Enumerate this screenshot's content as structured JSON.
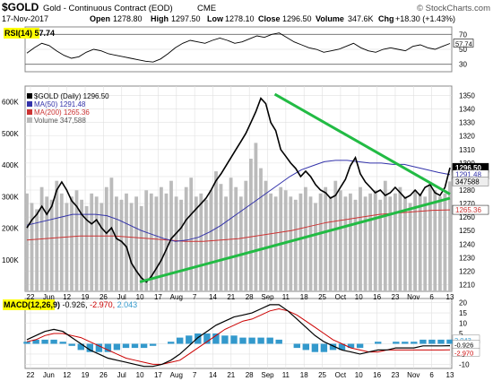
{
  "header": {
    "symbol": "$GOLD",
    "description": "Gold - Continuous Contract (EOD)",
    "exchange": "CME",
    "copyright": "© StockCharts.com",
    "date": "17-Nov-2017",
    "open_label": "Open",
    "open_value": "1278.80",
    "high_label": "High",
    "high_value": "1297.50",
    "low_label": "Low",
    "low_value": "1278.10",
    "close_label": "Close",
    "close_value": "1296.50",
    "volume_label": "Volume",
    "volume_value": "347.6K",
    "chg_label": "Chg",
    "chg_value": "+18.30 (+1.43%)"
  },
  "colors": {
    "price_line": "#000000",
    "price_up_segment": "#cc0000",
    "ma50": "#3333aa",
    "ma200": "#cc3333",
    "trendline": "#22bb44",
    "volume": "#bbbbbb",
    "macd_line": "#000000",
    "macd_signal": "#cc0000",
    "histogram": "#3399cc",
    "highlight": "#ffff00",
    "grid": "#e0e0e0"
  },
  "chart_data": [
    {
      "type": "line",
      "panel": "rsi",
      "label": "RSI(14) 57.74",
      "y_ticks": [
        70,
        50,
        30
      ],
      "ylim": [
        20,
        80
      ],
      "reference_lines": [
        70,
        30
      ],
      "last_value_tag": "57.74",
      "values": [
        45,
        52,
        58,
        55,
        48,
        42,
        38,
        40,
        46,
        50,
        48,
        44,
        42,
        40,
        38,
        36,
        34,
        33,
        37,
        44,
        52,
        58,
        62,
        60,
        58,
        62,
        65,
        62,
        58,
        60,
        64,
        68,
        66,
        70,
        72,
        66,
        60,
        56,
        52,
        50,
        46,
        48,
        50,
        54,
        58,
        52,
        48,
        46,
        50,
        52,
        50,
        48,
        54,
        56,
        52,
        50,
        54,
        57.74
      ]
    },
    {
      "type": "line",
      "panel": "price",
      "legend": [
        {
          "name": "$GOLD (Daily) 1296.50",
          "color": "#000000"
        },
        {
          "name": "MA(50) 1291.48",
          "color": "#3333aa"
        },
        {
          "name": "MA(200) 1265.36",
          "color": "#cc3333"
        },
        {
          "name": "Volume 347,588",
          "color": "#bbbbbb"
        }
      ],
      "y_ticks": [
        1350,
        1340,
        1330,
        1320,
        1310,
        1300,
        1290,
        1280,
        1270,
        1260,
        1250,
        1240,
        1230,
        1220,
        1210
      ],
      "ylim": [
        1205,
        1357
      ],
      "volume_ticks": [
        "600K",
        "500K",
        "400K",
        "300K",
        "200K",
        "100K"
      ],
      "volume_ylim": [
        0,
        650
      ],
      "price_tags": [
        "1296.50",
        "1291.48",
        "1265.36"
      ],
      "volume_tag": "347588",
      "x_ticks": [
        "22",
        "Jun",
        "12",
        "19",
        "26",
        "Jul",
        "10",
        "17",
        "Aug",
        "7",
        "14",
        "21",
        "28",
        "Sep",
        "11",
        "18",
        "25",
        "Oct",
        "10",
        "16",
        "23",
        "Nov",
        "6",
        "13"
      ],
      "series": [
        {
          "name": "$GOLD (Daily) 1296.50",
          "values": [
            1252,
            1258,
            1262,
            1268,
            1262,
            1268,
            1280,
            1286,
            1280,
            1272,
            1268,
            1262,
            1258,
            1255,
            1258,
            1252,
            1248,
            1252,
            1244,
            1242,
            1238,
            1226,
            1220,
            1215,
            1212,
            1216,
            1222,
            1228,
            1236,
            1244,
            1248,
            1252,
            1258,
            1262,
            1266,
            1270,
            1274,
            1280,
            1287,
            1292,
            1298,
            1304,
            1310,
            1316,
            1322,
            1330,
            1338,
            1348,
            1344,
            1330,
            1324,
            1310,
            1305,
            1300,
            1296,
            1290,
            1294,
            1290,
            1284,
            1280,
            1278,
            1274,
            1276,
            1282,
            1288,
            1298,
            1304,
            1292,
            1286,
            1282,
            1278,
            1280,
            1276,
            1278,
            1282,
            1278,
            1274,
            1276,
            1280,
            1276,
            1282,
            1284,
            1278,
            1276,
            1282,
            1296.5
          ]
        },
        {
          "name": "MA(50) 1291.48",
          "values": [
            1254,
            1256,
            1258,
            1260,
            1262,
            1262,
            1262,
            1261,
            1258,
            1254,
            1250,
            1247,
            1244,
            1242,
            1243,
            1245,
            1249,
            1254,
            1260,
            1266,
            1272,
            1278,
            1284,
            1290,
            1295,
            1298,
            1301,
            1302,
            1302,
            1301,
            1300,
            1300,
            1299,
            1299,
            1297,
            1295,
            1293,
            1291.48
          ]
        },
        {
          "name": "MA(200) 1265.36",
          "values": [
            1243,
            1244,
            1245,
            1246,
            1246,
            1246,
            1245,
            1244,
            1243,
            1242,
            1242,
            1243,
            1244,
            1246,
            1248,
            1250,
            1253,
            1256,
            1258,
            1260,
            1262,
            1263,
            1264,
            1265,
            1265.36
          ]
        }
      ],
      "volume": [
        310,
        280,
        260,
        330,
        300,
        290,
        350,
        310,
        280,
        300,
        320,
        290,
        270,
        310,
        300,
        280,
        330,
        360,
        300,
        290,
        310,
        280,
        300,
        270,
        320,
        310,
        300,
        330,
        310,
        350,
        300,
        290,
        330,
        360,
        300,
        310,
        290,
        320,
        380,
        340,
        300,
        360,
        330,
        300,
        350,
        420,
        470,
        390,
        350,
        310,
        300,
        330,
        320,
        300,
        290,
        310,
        330,
        300,
        280,
        310,
        330,
        300,
        350,
        320,
        300,
        310,
        290,
        330,
        300,
        310,
        320,
        290,
        350,
        300,
        310,
        330,
        300,
        280,
        320,
        310,
        300,
        340,
        320,
        300,
        310,
        348
      ],
      "trendlines": [
        {
          "from": {
            "x": "Sep 8",
            "y": 1351
          },
          "to": {
            "x": "Nov 17",
            "y": 1277
          }
        },
        {
          "from": {
            "x": "Jul 10",
            "y": 1212
          },
          "to": {
            "x": "Nov 17",
            "y": 1274
          }
        }
      ]
    },
    {
      "type": "line",
      "panel": "macd",
      "label": "MACD(12,26,9) -0.926, -2.970, 2.043",
      "label_prefix": "MACD(12,26,9)",
      "label_v1": "-0.926,",
      "label_v2": "-2.970,",
      "label_v3": "2.043",
      "y_ticks": [
        20,
        15,
        10,
        5,
        0,
        -5,
        -10
      ],
      "ylim": [
        -12,
        22
      ],
      "value_tags": [
        "2.043",
        "-0.926",
        "-2.970"
      ],
      "series": [
        {
          "name": "MACD",
          "values": [
            2,
            4,
            6,
            7,
            6,
            3,
            0,
            -3,
            -5,
            -7,
            -8,
            -9,
            -10,
            -11,
            -11,
            -10,
            -8,
            -5,
            -1,
            3,
            6,
            9,
            11,
            13,
            14,
            15,
            17,
            19,
            19,
            16,
            12,
            8,
            4,
            1,
            -1,
            -3,
            -4,
            -5,
            -4,
            -3,
            -3,
            -2,
            -2,
            -2,
            -1,
            -1,
            -1,
            -0.926
          ]
        },
        {
          "name": "Signal",
          "values": [
            1,
            2,
            4,
            5,
            5,
            4,
            3,
            1,
            -1,
            -3,
            -5,
            -7,
            -8,
            -9,
            -10,
            -10,
            -9,
            -8,
            -5,
            -2,
            1,
            4,
            7,
            9,
            11,
            12,
            14,
            16,
            17,
            16,
            14,
            11,
            8,
            5,
            2,
            0,
            -2,
            -3,
            -4,
            -4,
            -3,
            -3,
            -3,
            -3,
            -3,
            -3,
            -3,
            -2.97
          ]
        },
        {
          "name": "Histogram",
          "values": [
            1,
            2,
            2,
            2,
            1,
            -1,
            -3,
            -4,
            -4,
            -4,
            -3,
            -2,
            -2,
            -2,
            -1,
            0,
            1,
            3,
            4,
            5,
            5,
            5,
            4,
            4,
            3,
            3,
            3,
            3,
            2,
            0,
            -2,
            -3,
            -4,
            -4,
            -3,
            -3,
            -2,
            -2,
            0,
            1,
            0,
            1,
            1,
            1,
            2,
            2,
            2,
            2.043
          ]
        }
      ],
      "x_ticks": [
        "22",
        "Jun",
        "12",
        "19",
        "26",
        "Jul",
        "10",
        "17",
        "Aug",
        "7",
        "14",
        "21",
        "28",
        "Sep",
        "11",
        "18",
        "25",
        "Oct",
        "10",
        "16",
        "23",
        "Nov",
        "6",
        "13"
      ]
    }
  ]
}
